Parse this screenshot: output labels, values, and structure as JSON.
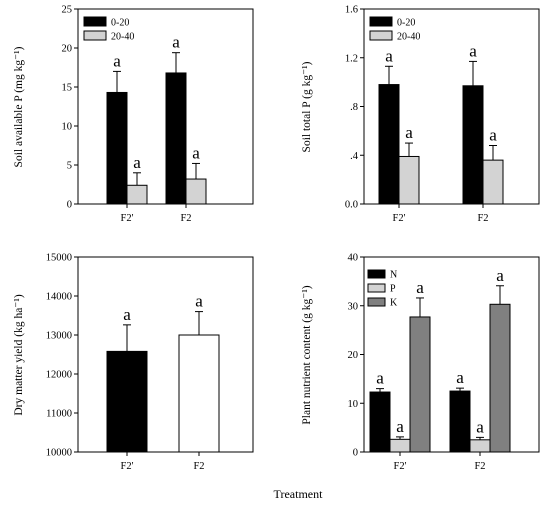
{
  "figure": {
    "xlabel": "Treatment"
  },
  "chart_data": [
    {
      "type": "bar",
      "categories": [
        "F2'",
        "F2"
      ],
      "ylabel": "Soil available P (mg kg⁻¹)",
      "ylim": [
        0,
        25
      ],
      "yticks": [
        "0",
        "5",
        "10",
        "15",
        "20",
        "25"
      ],
      "yticks_values": [
        0,
        5,
        10,
        15,
        20,
        25
      ],
      "legend_position": "top-left",
      "series": [
        {
          "name": "0-20",
          "color": "#000000",
          "values": [
            14.3,
            16.8
          ],
          "errors": [
            2.7,
            2.6
          ],
          "labels": [
            "a",
            "a"
          ]
        },
        {
          "name": "20-40",
          "color": "#d3d3d3",
          "values": [
            2.4,
            3.2
          ],
          "errors": [
            1.6,
            2.0
          ],
          "labels": [
            "a",
            "a"
          ]
        }
      ]
    },
    {
      "type": "bar",
      "categories": [
        "F2'",
        "F2"
      ],
      "ylabel": "Soil total P (g kg⁻¹)",
      "ylim": [
        0,
        1.6
      ],
      "yticks": [
        "0.0",
        ".4",
        ".8",
        "1.2",
        "1.6"
      ],
      "yticks_values": [
        0,
        0.4,
        0.8,
        1.2,
        1.6
      ],
      "legend_position": "top-left",
      "series": [
        {
          "name": "0-20",
          "color": "#000000",
          "values": [
            0.98,
            0.97
          ],
          "errors": [
            0.15,
            0.2
          ],
          "labels": [
            "a",
            "a"
          ]
        },
        {
          "name": "20-40",
          "color": "#d3d3d3",
          "values": [
            0.39,
            0.36
          ],
          "errors": [
            0.11,
            0.12
          ],
          "labels": [
            "a",
            "a"
          ]
        }
      ]
    },
    {
      "type": "bar",
      "categories": [
        "F2'",
        "F2"
      ],
      "ylabel": "Dry matter yield (kg ha⁻¹)",
      "ylim": [
        10000,
        15000
      ],
      "yticks": [
        "10000",
        "11000",
        "12000",
        "13000",
        "14000",
        "15000"
      ],
      "yticks_values": [
        10000,
        11000,
        12000,
        13000,
        14000,
        15000
      ],
      "colors": [
        "#000000",
        "#ffffff"
      ],
      "values": [
        12580,
        13000
      ],
      "errors": [
        680,
        600
      ],
      "labels": [
        "a",
        "a"
      ]
    },
    {
      "type": "bar",
      "categories": [
        "F2'",
        "F2"
      ],
      "ylabel": "Plant nutrient content (g kg⁻¹)",
      "ylim": [
        0,
        40
      ],
      "yticks": [
        "0",
        "10",
        "20",
        "30",
        "40"
      ],
      "yticks_values": [
        0,
        10,
        20,
        30,
        40
      ],
      "legend_position": "top-left",
      "series": [
        {
          "name": "N",
          "color": "#000000",
          "values": [
            12.3,
            12.5
          ],
          "errors": [
            0.7,
            0.6
          ],
          "labels": [
            "a",
            "a"
          ]
        },
        {
          "name": "P",
          "color": "#d3d3d3",
          "values": [
            2.6,
            2.5
          ],
          "errors": [
            0.5,
            0.5
          ],
          "labels": [
            "a",
            "a"
          ]
        },
        {
          "name": "K",
          "color": "#808080",
          "values": [
            27.7,
            30.3
          ],
          "errors": [
            3.9,
            3.8
          ],
          "labels": [
            "a",
            "a"
          ]
        }
      ]
    }
  ]
}
